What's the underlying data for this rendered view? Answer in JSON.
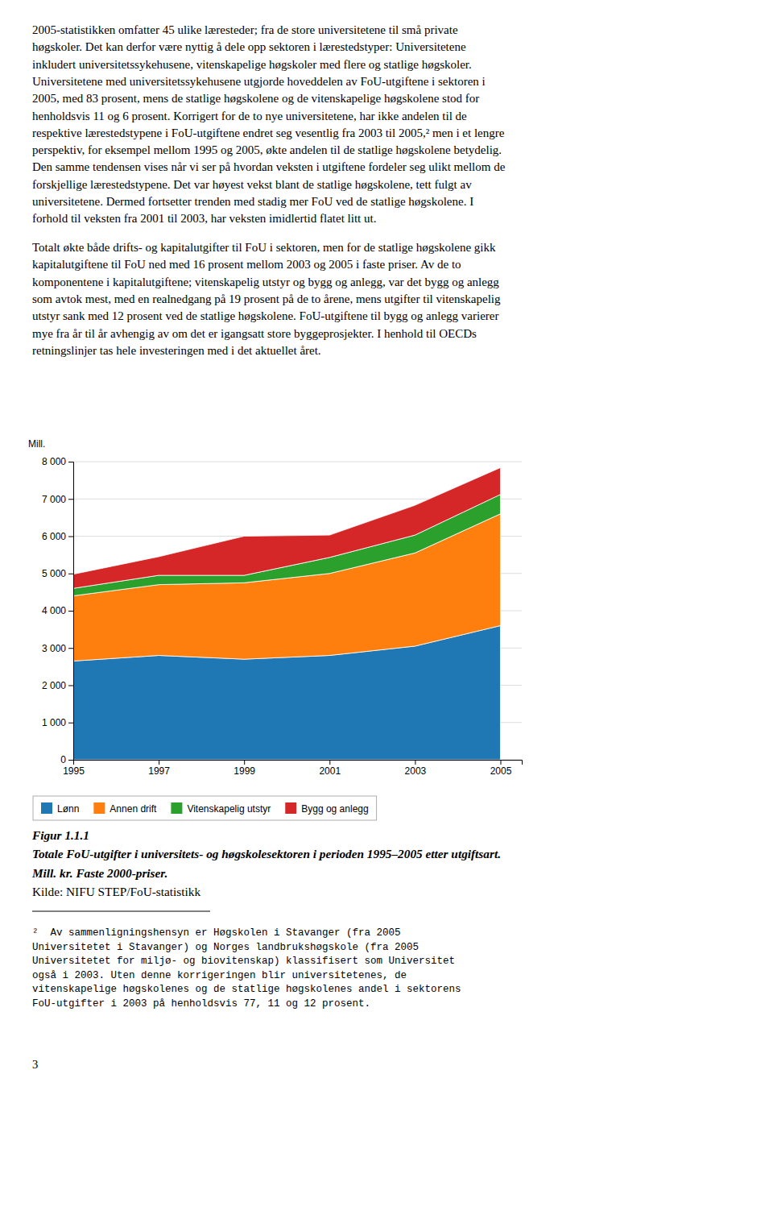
{
  "chart_data": {
    "type": "area",
    "stacked": true,
    "ylabel": "Mill.",
    "x": [
      1995,
      1997,
      1999,
      2001,
      2003,
      2005
    ],
    "series": [
      {
        "name": "Lønn",
        "values": [
          2650,
          2800,
          2700,
          2800,
          3050,
          3600
        ]
      },
      {
        "name": "Annen drift",
        "values": [
          1750,
          1900,
          2050,
          2200,
          2500,
          3000
        ]
      },
      {
        "name": "Vitenskapelig utstyr",
        "values": [
          200,
          250,
          200,
          430,
          480,
          520
        ]
      },
      {
        "name": "Bygg og anlegg",
        "values": [
          380,
          500,
          1050,
          600,
          800,
          720
        ]
      }
    ],
    "xlim": [
      1995,
      2005.5
    ],
    "xticks": [
      1995,
      1997,
      1999,
      2001,
      2003,
      2005
    ],
    "ylim": [
      0,
      8000
    ],
    "yticks": [
      0,
      {
        "value": 1000,
        "label": "1 000"
      },
      {
        "value": 2000,
        "label": "2 000"
      },
      {
        "value": 3000,
        "label": "3 000"
      },
      {
        "value": 4000,
        "label": "4 000"
      },
      {
        "value": 5000,
        "label": "5 000"
      },
      {
        "value": 6000,
        "label": "6 000"
      },
      {
        "value": 7000,
        "label": "7 000"
      },
      {
        "value": 8000,
        "label": "8 000"
      }
    ],
    "grid": true,
    "legend": "bottom"
  },
  "paragraphs": [
    [
      "2005-statistikken omfatter 45 ulike læresteder; fra de store universitetene til små private",
      "høgskoler. Det kan derfor være nyttig å dele opp sektoren i lærestedstyper: Universitetene",
      "inkludert universitetssykehusene, vitenskapelige høgskoler med flere og statlige høgskoler.",
      "Universitetene med universitetssykehusene utgjorde hoveddelen av FoU-utgiftene i sektoren i",
      "2005, med 83 prosent, mens de statlige høgskolene og de vitenskapelige høgskolene stod for",
      "henholdsvis 11 og 6 prosent. Korrigert for de to nye universitetene, har ikke andelen til de",
      "respektive lærestedstypene i FoU-utgiftene endret seg vesentlig fra 2003 til 2005,² men i et lengre",
      "perspektiv, for eksempel mellom 1995 og 2005, økte andelen til de statlige høgskolene betydelig.",
      "Den samme tendensen vises når vi ser på hvordan veksten i utgiftene fordeler seg ulikt mellom de",
      "forskjellige lærestedstypene. Det var høyest vekst blant de statlige høgskolene, tett fulgt av",
      "universitetene. Dermed fortsetter trenden med stadig mer FoU ved de statlige høgskolene. I",
      "forhold til veksten fra 2001 til 2003, har veksten imidlertid flatet litt ut."
    ],
    [
      "Totalt økte både drifts- og kapitalutgifter til FoU i sektoren, men for de statlige høgskolene gikk",
      "kapitalutgiftene til FoU ned med 16 prosent mellom 2003 og 2005 i faste priser. Av de to",
      "komponentene i kapitalutgiftene; vitenskapelig utstyr og bygg og anlegg, var det bygg og anlegg",
      "som avtok mest, med en realnedgang på 19 prosent på de to årene, mens utgifter til vitenskapelig",
      "utstyr sank med 12 prosent ved de statlige høgskolene. FoU-utgiftene til bygg og anlegg varierer",
      "mye fra år til år avhengig av om det er igangsatt store byggeprosjekter. I henhold til OECDs",
      "retningslinjer tas hele investeringen med i det aktuellet året."
    ]
  ],
  "caption": [
    "Figur 1.1.1",
    "Totale FoU-utgifter i universitets- og høgskolesektoren i perioden 1995–2005 etter utgiftsart.",
    "Mill. kr. Faste 2000-priser."
  ],
  "source": "Kilde: NIFU STEP/FoU-statistikk",
  "footnotes": [
    "²  Av sammenligningshensyn er Høgskolen i Stavanger (fra 2005",
    "Universitetet i Stavanger) og Norges landbrukshøgskole (fra 2005",
    "Universitetet for miljø- og biovitenskap) klassifisert som Universitet",
    "også i 2003. Uten denne korrigeringen blir universitetenes, de",
    "vitenskapelige høgskolenes og de statlige høgskolenes andel i sektorens",
    "FoU-utgifter i 2003 på henholdsvis 77, 11 og 12 prosent."
  ],
  "page_number": "3"
}
